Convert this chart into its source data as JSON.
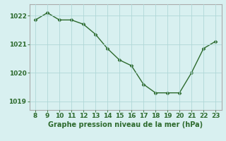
{
  "x": [
    8,
    9,
    10,
    11,
    12,
    13,
    14,
    15,
    16,
    17,
    18,
    19,
    20,
    21,
    22,
    23
  ],
  "y": [
    1021.85,
    1022.1,
    1021.85,
    1021.85,
    1021.7,
    1021.35,
    1020.85,
    1020.45,
    1020.25,
    1019.6,
    1019.3,
    1019.3,
    1019.3,
    1020.0,
    1020.85,
    1021.1
  ],
  "line_color": "#2d6a2d",
  "marker": "D",
  "markersize": 2.5,
  "linewidth": 1.0,
  "xlabel": "Graphe pression niveau de la mer (hPa)",
  "xlim": [
    7.5,
    23.5
  ],
  "ylim": [
    1018.7,
    1022.4
  ],
  "yticks": [
    1019,
    1020,
    1021,
    1022
  ],
  "xticks": [
    8,
    9,
    10,
    11,
    12,
    13,
    14,
    15,
    16,
    17,
    18,
    19,
    20,
    21,
    22,
    23
  ],
  "bg_color": "#d8f0f0",
  "grid_color": "#b0d8d8",
  "text_color": "#2d6a2d",
  "tick_fontsize": 6.5,
  "label_fontsize": 7.0
}
